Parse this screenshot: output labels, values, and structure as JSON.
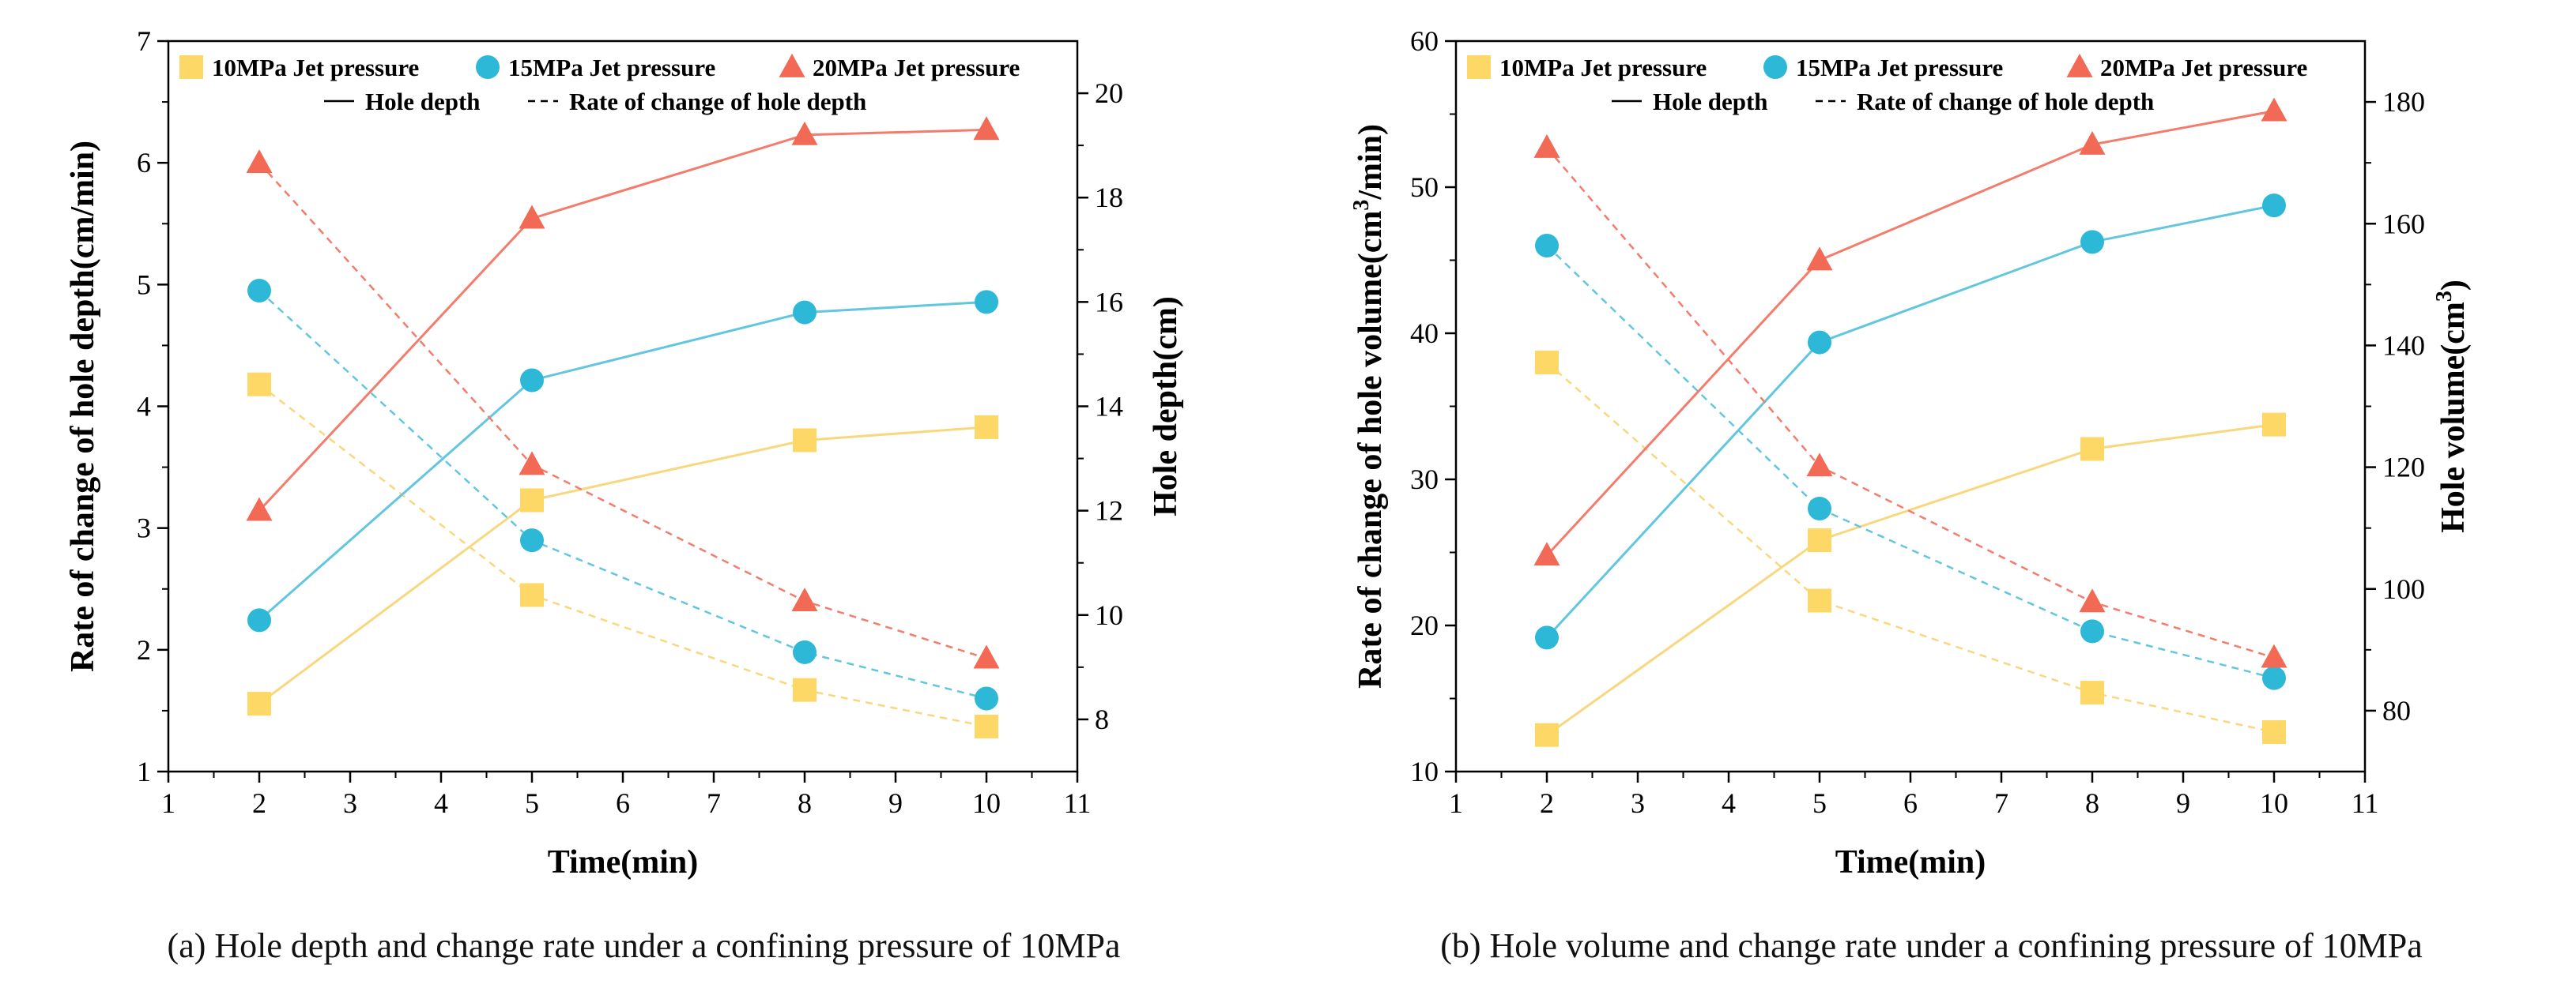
{
  "chart_data": [
    {
      "type": "line",
      "panel": "a",
      "caption": "(a) Hole depth and change rate under a confining pressure of 10MPa",
      "xlabel": "Time(min)",
      "ylabel_left": "Rate of change of hole depth(cm/min)",
      "ylabel_right": "Hole depth(cm)",
      "ylabel_right_sup": "",
      "ylabel_right_tail": "",
      "ylabel_left_parts": [
        "Rate of change of hole depth(cm/min)",
        "",
        ""
      ],
      "xlim": [
        1,
        11
      ],
      "xticks": [
        "1",
        "2",
        "3",
        "4",
        "5",
        "6",
        "7",
        "8",
        "9",
        "10",
        "11"
      ],
      "ylim_left": [
        1,
        7
      ],
      "yticks_left": [
        "1",
        "2",
        "3",
        "4",
        "5",
        "6",
        "7"
      ],
      "ylim_right": [
        7,
        21
      ],
      "yticks_right": [
        "8",
        "10",
        "12",
        "14",
        "16",
        "18",
        "20"
      ],
      "yticks_right_values": [
        8,
        10,
        12,
        14,
        16,
        18,
        20
      ],
      "legend": {
        "placement": "top",
        "series_entries": [
          "10MPa Jet pressure",
          "15MPa Jet pressure",
          "20MPa Jet pressure"
        ],
        "line_entries": [
          "Hole depth",
          "Rate of change of hole depth"
        ]
      },
      "x": [
        2,
        5,
        8,
        10
      ],
      "series": [
        {
          "name": "10MPa Jet pressure",
          "marker": "square",
          "color": "#FDD867",
          "line": "#F9D77E",
          "hole": [
            8.3,
            12.2,
            13.35,
            13.6
          ],
          "rate": [
            4.18,
            2.45,
            1.67,
            1.37
          ]
        },
        {
          "name": "15MPa Jet pressure",
          "marker": "circle",
          "color": "#2DB8D8",
          "line": "#63C6DF",
          "hole": [
            9.9,
            14.5,
            15.8,
            16.0
          ],
          "rate": [
            4.95,
            2.9,
            1.98,
            1.6
          ]
        },
        {
          "name": "20MPa Jet pressure",
          "marker": "triangle",
          "color": "#F26A55",
          "line": "#F47C6C",
          "hole": [
            12.0,
            17.6,
            19.2,
            19.3
          ],
          "rate": [
            6.0,
            3.52,
            2.4,
            1.93
          ]
        }
      ]
    },
    {
      "type": "line",
      "panel": "b",
      "caption": "(b) Hole volume and change rate under a confining pressure of 10MPa",
      "xlabel": "Time(min)",
      "ylabel_left": "Rate of change of hole volume(cm3/min)",
      "ylabel_left_parts": [
        "Rate of change of hole volume(cm",
        "3",
        "/min)"
      ],
      "ylabel_right": "Hole volume(cm3)",
      "ylabel_right_sup": "3",
      "ylabel_right_tail": ")",
      "ylabel_right_head": "Hole volume(cm",
      "xlim": [
        1,
        11
      ],
      "xticks": [
        "1",
        "2",
        "3",
        "4",
        "5",
        "6",
        "7",
        "8",
        "9",
        "10",
        "11"
      ],
      "ylim_left": [
        10,
        60
      ],
      "yticks_left": [
        "10",
        "20",
        "30",
        "40",
        "50",
        "60"
      ],
      "ylim_right": [
        70,
        190
      ],
      "yticks_right": [
        "80",
        "100",
        "120",
        "140",
        "160",
        "180"
      ],
      "yticks_right_values": [
        80,
        100,
        120,
        140,
        160,
        180
      ],
      "legend": {
        "placement": "top",
        "series_entries": [
          "10MPa Jet pressure",
          "15MPa Jet pressure",
          "20MPa Jet pressure"
        ],
        "line_entries": [
          "Hole depth",
          "Rate of change of hole depth"
        ]
      },
      "x": [
        2,
        5,
        8,
        10
      ],
      "series": [
        {
          "name": "10MPa Jet pressure",
          "marker": "square",
          "color": "#FDD867",
          "line": "#F9D77E",
          "hole": [
            76,
            108,
            123,
            127
          ],
          "rate": [
            38.0,
            21.7,
            15.4,
            12.7
          ]
        },
        {
          "name": "15MPa Jet pressure",
          "marker": "circle",
          "color": "#2DB8D8",
          "line": "#63C6DF",
          "hole": [
            92,
            140.5,
            157,
            163
          ],
          "rate": [
            46.0,
            28.0,
            19.6,
            16.4
          ]
        },
        {
          "name": "20MPa Jet pressure",
          "marker": "triangle",
          "color": "#F26A55",
          "line": "#F47C6C",
          "hole": [
            105.5,
            154,
            173,
            178.5
          ],
          "rate": [
            52.7,
            30.9,
            21.6,
            17.8
          ]
        }
      ]
    }
  ]
}
